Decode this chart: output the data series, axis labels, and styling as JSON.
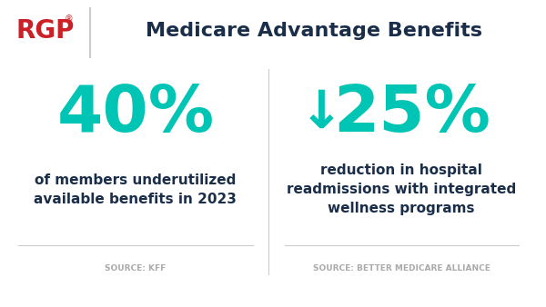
{
  "title": "Medicare Advantage Benefits",
  "rgp_text": "RGP",
  "rgp_color": "#cc2027",
  "title_color": "#1a2e4a",
  "bg_color": "#ffffff",
  "teal_color": "#00c4b4",
  "dark_color": "#1a2e4a",
  "gray_color": "#aaaaaa",
  "stat1_value": "40%",
  "stat1_desc": "of members underutilized\navailable benefits in 2023",
  "stat1_source": "SOURCE: KFF",
  "stat2_value": "25%",
  "stat2_desc": "reduction in hospital\nreadmissions with integrated\nwellness programs",
  "stat2_source": "SOURCE: BETTER MEDICARE ALLIANCE",
  "divider_color": "#cccccc"
}
